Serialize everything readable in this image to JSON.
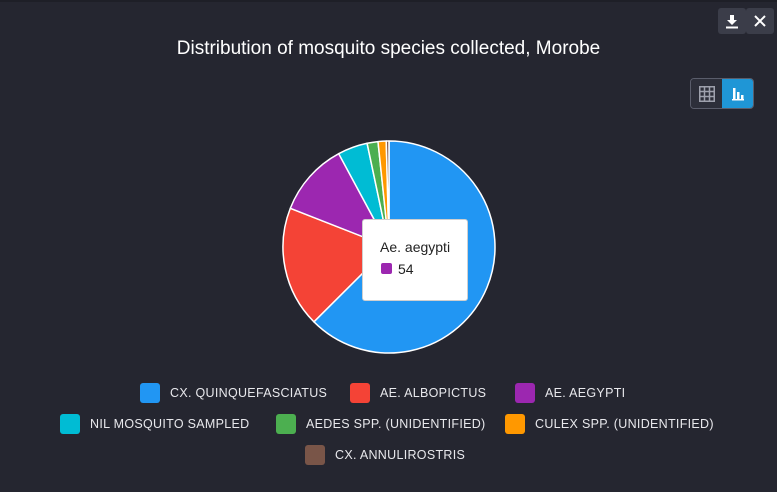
{
  "toolbar": {
    "download_icon": "download-icon",
    "close_icon": "close-icon",
    "view_toggle": {
      "table_icon": "grid-table-icon",
      "chart_icon": "bar-chart-icon",
      "active": "chart"
    }
  },
  "chart_data": {
    "type": "pie",
    "title": "Distribution of mosquito species collected, Morobe",
    "categories": [
      "Cx. quinquefasciatus",
      "Ae. albopictus",
      "Ae. aegypti",
      "Nil mosquito sampled",
      "Aedes spp. (unidentified)",
      "Culex spp. (unidentified)",
      "Cx. annulirostris"
    ],
    "legend_labels": [
      "CX. QUINQUEFASCIATUS",
      "AE. ALBOPICTUS",
      "AE. AEGYPTI",
      "NIL MOSQUITO SAMPLED",
      "AEDES SPP. (UNIDENTIFIED)",
      "CULEX SPP. (UNIDENTIFIED)",
      "CX. ANNULIROSTRIS"
    ],
    "values": [
      302,
      89,
      54,
      22,
      8,
      6,
      2
    ],
    "colors": [
      "#2196f3",
      "#f44336",
      "#9c27b0",
      "#00bcd4",
      "#4caf50",
      "#ff9800",
      "#795548"
    ],
    "legend_position": "bottom",
    "tooltip": {
      "label": "Ae. aegypti",
      "value": "54",
      "color": "#9c27b0"
    }
  }
}
